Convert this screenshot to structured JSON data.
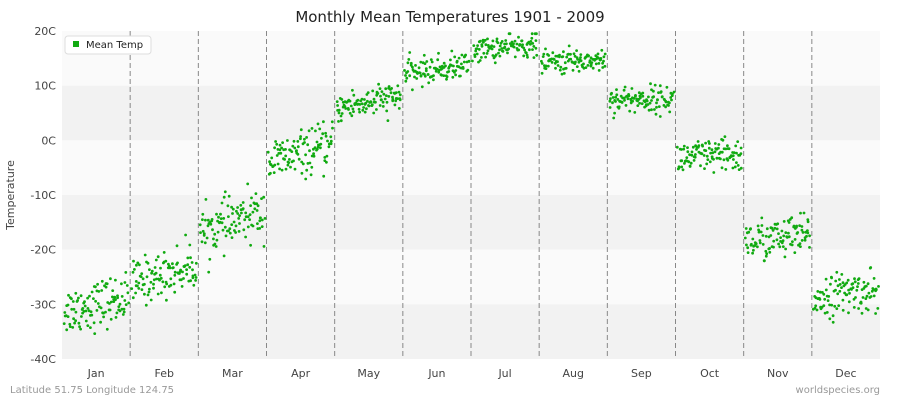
{
  "chart_data": {
    "type": "scatter",
    "title": "Monthly Mean Temperatures 1901 - 2009",
    "ylabel": "Temperature",
    "xlabel": "",
    "ylim": [
      -40,
      20
    ],
    "yticks": [
      {
        "value": 20,
        "label": "20C"
      },
      {
        "value": 10,
        "label": "10C"
      },
      {
        "value": 0,
        "label": "0C"
      },
      {
        "value": -10,
        "label": "-10C"
      },
      {
        "value": -20,
        "label": "-20C"
      },
      {
        "value": -30,
        "label": "-30C"
      },
      {
        "value": -40,
        "label": "-40C"
      }
    ],
    "categories": [
      "Jan",
      "Feb",
      "Mar",
      "Apr",
      "May",
      "Jun",
      "Jul",
      "Aug",
      "Sep",
      "Oct",
      "Nov",
      "Dec"
    ],
    "series": [
      {
        "name": "Mean Temp",
        "color": "#11aa11",
        "points_per_month": 109,
        "monthly_center": [
          -30,
          -24.5,
          -15,
          -2.5,
          7,
          13,
          17,
          14.5,
          7.5,
          -3,
          -18,
          -28
        ],
        "monthly_spread": [
          2.2,
          2.1,
          2.2,
          2.0,
          1.4,
          1.2,
          1.1,
          1.1,
          1.2,
          1.6,
          1.9,
          1.9
        ],
        "monthly_trend": [
          2.5,
          3.5,
          4,
          3,
          2,
          1.5,
          1,
          0.5,
          0,
          0.5,
          1,
          1.5
        ]
      }
    ],
    "grid": true,
    "legend": "top-left"
  },
  "footer": {
    "location": "Latitude 51.75 Longitude 124.75",
    "source": "worldspecies.org"
  }
}
